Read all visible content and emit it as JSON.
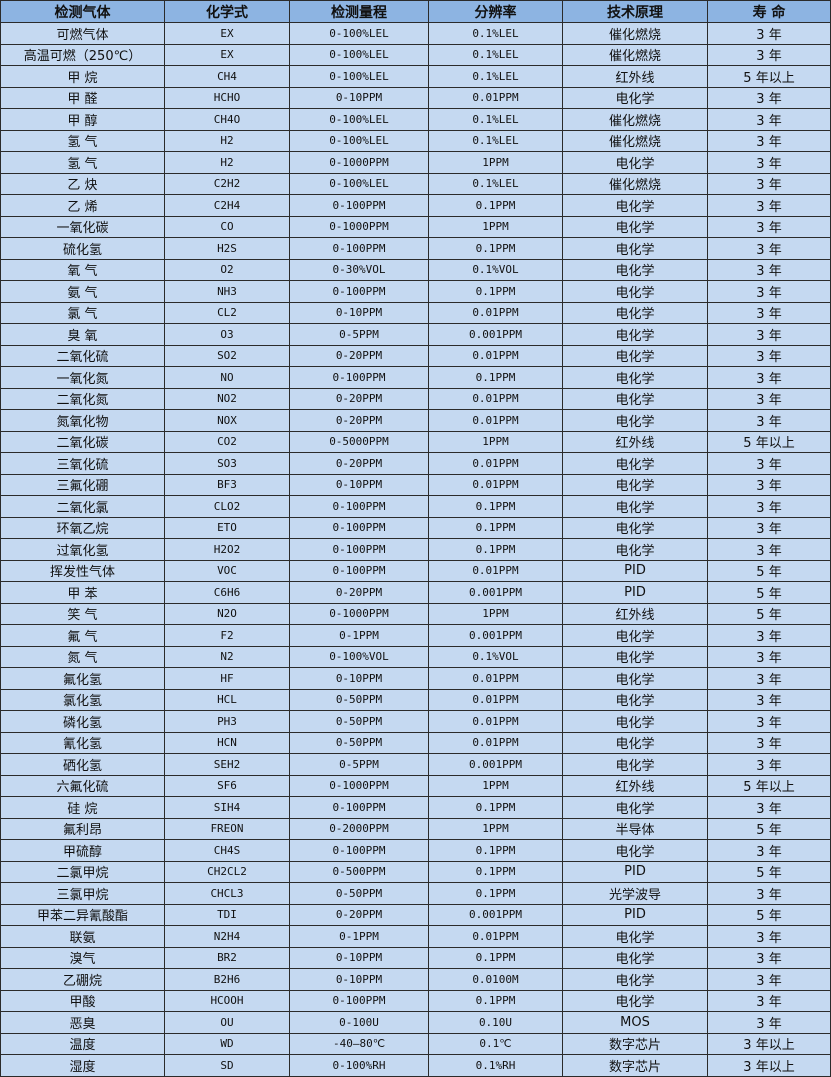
{
  "headers": [
    "检测气体",
    "化学式",
    "检测量程",
    "分辨率",
    "技术原理",
    "寿 命"
  ],
  "rows": [
    [
      "可燃气体",
      "EX",
      "0-100%LEL",
      "0.1%LEL",
      "催化燃烧",
      "3 年"
    ],
    [
      "高温可燃（250℃）",
      "EX",
      "0-100%LEL",
      "0.1%LEL",
      "催化燃烧",
      "3 年"
    ],
    [
      "甲 烷",
      "CH4",
      "0-100%LEL",
      "0.1%LEL",
      "红外线",
      "5 年以上"
    ],
    [
      "甲 醛",
      "HCHO",
      "0-10PPM",
      "0.01PPM",
      "电化学",
      "3 年"
    ],
    [
      "甲 醇",
      "CH4O",
      "0-100%LEL",
      "0.1%LEL",
      "催化燃烧",
      "3 年"
    ],
    [
      "氢 气",
      "H2",
      "0-100%LEL",
      "0.1%LEL",
      "催化燃烧",
      "3 年"
    ],
    [
      "氢 气",
      "H2",
      "0-1000PPM",
      "1PPM",
      "电化学",
      "3 年"
    ],
    [
      "乙 炔",
      "C2H2",
      "0-100%LEL",
      "0.1%LEL",
      "催化燃烧",
      "3 年"
    ],
    [
      "乙 烯",
      "C2H4",
      "0-100PPM",
      "0.1PPM",
      "电化学",
      "3 年"
    ],
    [
      "一氧化碳",
      "CO",
      "0-1000PPM",
      "1PPM",
      "电化学",
      "3 年"
    ],
    [
      "硫化氢",
      "H2S",
      "0-100PPM",
      "0.1PPM",
      "电化学",
      "3 年"
    ],
    [
      "氧 气",
      "O2",
      "0-30%VOL",
      "0.1%VOL",
      "电化学",
      "3 年"
    ],
    [
      "氨 气",
      "NH3",
      "0-100PPM",
      "0.1PPM",
      "电化学",
      "3 年"
    ],
    [
      "氯 气",
      "CL2",
      "0-10PPM",
      "0.01PPM",
      "电化学",
      "3 年"
    ],
    [
      "臭 氧",
      "O3",
      "0-5PPM",
      "0.001PPM",
      "电化学",
      "3 年"
    ],
    [
      "二氧化硫",
      "SO2",
      "0-20PPM",
      "0.01PPM",
      "电化学",
      "3 年"
    ],
    [
      "一氧化氮",
      "NO",
      "0-100PPM",
      "0.1PPM",
      "电化学",
      "3 年"
    ],
    [
      "二氧化氮",
      "NO2",
      "0-20PPM",
      "0.01PPM",
      "电化学",
      "3 年"
    ],
    [
      "氮氧化物",
      "NOX",
      "0-20PPM",
      "0.01PPM",
      "电化学",
      "3 年"
    ],
    [
      "二氧化碳",
      "CO2",
      "0-5000PPM",
      "1PPM",
      "红外线",
      "5 年以上"
    ],
    [
      "三氧化硫",
      "SO3",
      "0-20PPM",
      "0.01PPM",
      "电化学",
      "3 年"
    ],
    [
      "三氟化硼",
      "BF3",
      "0-10PPM",
      "0.01PPM",
      "电化学",
      "3 年"
    ],
    [
      "二氧化氯",
      "CLO2",
      "0-100PPM",
      "0.1PPM",
      "电化学",
      "3 年"
    ],
    [
      "环氧乙烷",
      "ETO",
      "0-100PPM",
      "0.1PPM",
      "电化学",
      "3 年"
    ],
    [
      "过氧化氢",
      "H2O2",
      "0-100PPM",
      "0.1PPM",
      "电化学",
      "3 年"
    ],
    [
      "挥发性气体",
      "VOC",
      "0-100PPM",
      "0.01PPM",
      "PID",
      "5 年"
    ],
    [
      "甲 苯",
      "C6H6",
      "0-20PPM",
      "0.001PPM",
      "PID",
      "5 年"
    ],
    [
      "笑 气",
      "N2O",
      "0-1000PPM",
      "1PPM",
      "红外线",
      "5 年"
    ],
    [
      "氟 气",
      "F2",
      "0-1PPM",
      "0.001PPM",
      "电化学",
      "3 年"
    ],
    [
      "氮 气",
      "N2",
      "0-100%VOL",
      "0.1%VOL",
      "电化学",
      "3 年"
    ],
    [
      "氟化氢",
      "HF",
      "0-10PPM",
      "0.01PPM",
      "电化学",
      "3 年"
    ],
    [
      "氯化氢",
      "HCL",
      "0-50PPM",
      "0.01PPM",
      "电化学",
      "3 年"
    ],
    [
      "磷化氢",
      "PH3",
      "0-50PPM",
      "0.01PPM",
      "电化学",
      "3 年"
    ],
    [
      "氰化氢",
      "HCN",
      "0-50PPM",
      "0.01PPM",
      "电化学",
      "3 年"
    ],
    [
      "硒化氢",
      "SEH2",
      "0-5PPM",
      "0.001PPM",
      "电化学",
      "3 年"
    ],
    [
      "六氟化硫",
      "SF6",
      "0-1000PPM",
      "1PPM",
      "红外线",
      "5 年以上"
    ],
    [
      "硅 烷",
      "SIH4",
      "0-100PPM",
      "0.1PPM",
      "电化学",
      "3 年"
    ],
    [
      "氟利昂",
      "FREON",
      "0-2000PPM",
      "1PPM",
      "半导体",
      "5 年"
    ],
    [
      "甲硫醇",
      "CH4S",
      "0-100PPM",
      "0.1PPM",
      "电化学",
      "3 年"
    ],
    [
      "二氯甲烷",
      "CH2CL2",
      "0-500PPM",
      "0.1PPM",
      "PID",
      "5 年"
    ],
    [
      "三氯甲烷",
      "CHCL3",
      "0-50PPM",
      "0.1PPM",
      "光学波导",
      "3 年"
    ],
    [
      "甲苯二异氰酸酯",
      "TDI",
      "0-20PPM",
      "0.001PPM",
      "PID",
      "5 年"
    ],
    [
      "联氨",
      "N2H4",
      "0-1PPM",
      "0.01PPM",
      "电化学",
      "3 年"
    ],
    [
      "溴气",
      "BR2",
      "0-10PPM",
      "0.1PPM",
      "电化学",
      "3 年"
    ],
    [
      "乙硼烷",
      "B2H6",
      "0-10PPM",
      "0.0100M",
      "电化学",
      "3 年"
    ],
    [
      "甲酸",
      "HCOOH",
      "0-100PPM",
      "0.1PPM",
      "电化学",
      "3 年"
    ],
    [
      "恶臭",
      "OU",
      "0-100U",
      "0.10U",
      "MOS",
      "3 年"
    ],
    [
      "温度",
      "WD",
      "-40—80℃",
      "0.1℃",
      "数字芯片",
      "3 年以上"
    ],
    [
      "湿度",
      "SD",
      "0-100%RH",
      "0.1%RH",
      "数字芯片",
      "3 年以上"
    ]
  ],
  "colors": {
    "header_bg": "#8db4e2",
    "body_bg": "#c5d9f1",
    "border": "#2b2b2b"
  }
}
